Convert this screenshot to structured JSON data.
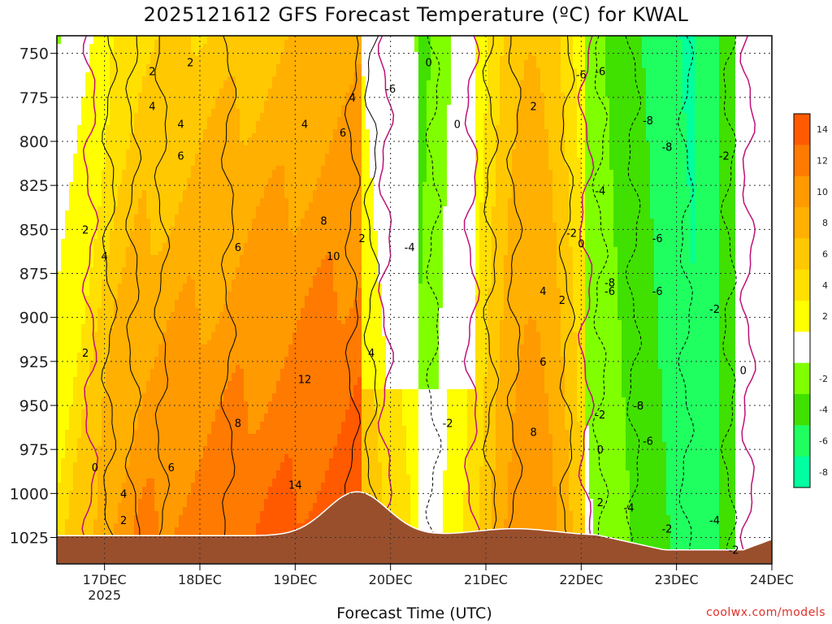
{
  "chart_data": {
    "type": "heatmap",
    "title": "2025121612 GFS Forecast Temperature (ºC) for KWAL",
    "xlabel": "Forecast Time (UTC)",
    "ylabel": "",
    "credit": "coolwx.com/models",
    "y_axis": {
      "ticks": [
        "750",
        "775",
        "800",
        "825",
        "850",
        "875",
        "900",
        "925",
        "950",
        "975",
        "1000",
        "1025"
      ],
      "range": [
        740,
        1040
      ],
      "inverted": true
    },
    "x_axis": {
      "ticks": [
        "17DEC",
        "18DEC",
        "19DEC",
        "20DEC",
        "21DEC",
        "22DEC",
        "23DEC",
        "24DEC"
      ],
      "year_label": "2025",
      "range_days": [
        16.5,
        24.0
      ]
    },
    "grid": true,
    "colorbar": {
      "tick_labels": [
        "14",
        "12",
        "10",
        "8",
        "6",
        "4",
        "2",
        "-2",
        "-4",
        "-6",
        "-8"
      ],
      "bins": [
        {
          "label": "14",
          "color": "#ff5a00"
        },
        {
          "label": "12",
          "color": "#ff7a00"
        },
        {
          "label": "10",
          "color": "#ff9a00"
        },
        {
          "label": "8",
          "color": "#ffb000"
        },
        {
          "label": "6",
          "color": "#ffc800"
        },
        {
          "label": "4",
          "color": "#ffe000"
        },
        {
          "label": "2",
          "color": "#ffff00"
        },
        {
          "label": "0",
          "color": "#ffffff"
        },
        {
          "label": "-2",
          "color": "#80ff00"
        },
        {
          "label": "-4",
          "color": "#40e000"
        },
        {
          "label": "-6",
          "color": "#20ff60"
        },
        {
          "label": "-8",
          "color": "#00ffa0"
        }
      ]
    },
    "contour_labels": [
      {
        "text": "2",
        "day": 17.5,
        "p": 760
      },
      {
        "text": "2",
        "day": 17.9,
        "p": 755
      },
      {
        "text": "4",
        "day": 17.5,
        "p": 780
      },
      {
        "text": "4",
        "day": 17.8,
        "p": 790
      },
      {
        "text": "6",
        "day": 17.8,
        "p": 808
      },
      {
        "text": "2",
        "day": 16.8,
        "p": 850
      },
      {
        "text": "4",
        "day": 17.0,
        "p": 865
      },
      {
        "text": "6",
        "day": 18.4,
        "p": 860
      },
      {
        "text": "4",
        "day": 19.1,
        "p": 790
      },
      {
        "text": "6",
        "day": 19.5,
        "p": 795
      },
      {
        "text": "8",
        "day": 19.3,
        "p": 845
      },
      {
        "text": "10",
        "day": 19.4,
        "p": 865
      },
      {
        "text": "4",
        "day": 19.6,
        "p": 775
      },
      {
        "text": "2",
        "day": 19.7,
        "p": 855
      },
      {
        "text": "12",
        "day": 19.1,
        "p": 935
      },
      {
        "text": "14",
        "day": 19.0,
        "p": 995
      },
      {
        "text": "8",
        "day": 18.4,
        "p": 960
      },
      {
        "text": "6",
        "day": 17.7,
        "p": 985
      },
      {
        "text": "4",
        "day": 17.2,
        "p": 1000
      },
      {
        "text": "2",
        "day": 17.2,
        "p": 1015
      },
      {
        "text": "0",
        "day": 16.9,
        "p": 985
      },
      {
        "text": "2",
        "day": 16.8,
        "p": 920
      },
      {
        "text": "4",
        "day": 19.8,
        "p": 920
      },
      {
        "text": "0",
        "day": 20.4,
        "p": 755
      },
      {
        "text": "-6",
        "day": 20.0,
        "p": 770
      },
      {
        "text": "0",
        "day": 20.7,
        "p": 790
      },
      {
        "text": "-4",
        "day": 20.2,
        "p": 860
      },
      {
        "text": "-2",
        "day": 20.6,
        "p": 960
      },
      {
        "text": "2",
        "day": 21.5,
        "p": 780
      },
      {
        "text": "4",
        "day": 21.6,
        "p": 885
      },
      {
        "text": "2",
        "day": 21.8,
        "p": 890
      },
      {
        "text": "6",
        "day": 21.6,
        "p": 925
      },
      {
        "text": "8",
        "day": 21.5,
        "p": 965
      },
      {
        "text": "0",
        "day": 22.0,
        "p": 858
      },
      {
        "text": "-2",
        "day": 21.9,
        "p": 852
      },
      {
        "text": "-6",
        "day": 22.0,
        "p": 762
      },
      {
        "text": "-6",
        "day": 22.2,
        "p": 760
      },
      {
        "text": "-8",
        "day": 22.7,
        "p": 788
      },
      {
        "text": "-8",
        "day": 22.9,
        "p": 803
      },
      {
        "text": "-4",
        "day": 22.2,
        "p": 828
      },
      {
        "text": "-6",
        "day": 22.8,
        "p": 855
      },
      {
        "text": "-2",
        "day": 23.5,
        "p": 808
      },
      {
        "text": "-6",
        "day": 22.3,
        "p": 885
      },
      {
        "text": "-8",
        "day": 22.3,
        "p": 880
      },
      {
        "text": "-6",
        "day": 22.8,
        "p": 885
      },
      {
        "text": "-2",
        "day": 23.4,
        "p": 895
      },
      {
        "text": "-8",
        "day": 22.6,
        "p": 950
      },
      {
        "text": "-6",
        "day": 22.7,
        "p": 970
      },
      {
        "text": "-2",
        "day": 22.2,
        "p": 955
      },
      {
        "text": "0",
        "day": 22.2,
        "p": 975
      },
      {
        "text": "2",
        "day": 22.2,
        "p": 1005
      },
      {
        "text": "-4",
        "day": 22.5,
        "p": 1008
      },
      {
        "text": "-2",
        "day": 22.9,
        "p": 1020
      },
      {
        "text": "-4",
        "day": 23.4,
        "p": 1015
      },
      {
        "text": "-2",
        "day": 23.6,
        "p": 1032
      },
      {
        "text": "0",
        "day": 23.7,
        "p": 930
      }
    ]
  }
}
